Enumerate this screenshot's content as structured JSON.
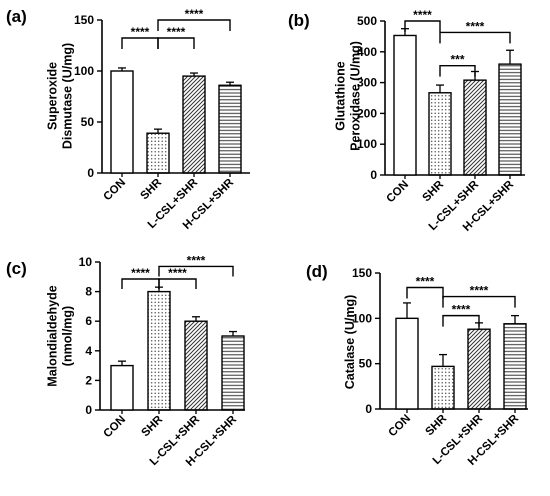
{
  "chart_data": [
    {
      "type": "bar",
      "panel": "(a)",
      "ylabel_lines": [
        "Superoxide",
        "Dismutase (U/mg)"
      ],
      "categories": [
        "CON",
        "SHR",
        "L-CSL+SHR",
        "H-CSL+SHR"
      ],
      "values": [
        100,
        39,
        95,
        86
      ],
      "errors": [
        3,
        4,
        3,
        3
      ],
      "ylim": [
        0,
        150
      ],
      "yticks": [
        "0",
        "50",
        "100",
        "150"
      ],
      "significance": [
        {
          "from": 0,
          "to": 1,
          "label": "****"
        },
        {
          "from": 1,
          "to": 2,
          "label": "****"
        },
        {
          "from": 1,
          "to": 3,
          "label": "****"
        }
      ]
    },
    {
      "type": "bar",
      "panel": "(b)",
      "ylabel_lines": [
        "Glutathione",
        "Peroxidase (U/mg)"
      ],
      "categories": [
        "CON",
        "SHR",
        "L-CSL+SHR",
        "H-CSL+SHR"
      ],
      "values": [
        453,
        267,
        308,
        360
      ],
      "errors": [
        22,
        25,
        28,
        45
      ],
      "ylim": [
        0,
        500
      ],
      "yticks": [
        "0",
        "100",
        "200",
        "300",
        "400",
        "500"
      ],
      "significance": [
        {
          "from": 0,
          "to": 1,
          "label": "****"
        },
        {
          "from": 1,
          "to": 2,
          "label": "***"
        },
        {
          "from": 1,
          "to": 3,
          "label": "****"
        }
      ]
    },
    {
      "type": "bar",
      "panel": "(c)",
      "ylabel_lines": [
        "Malondialdehyde",
        "(nmol/mg)"
      ],
      "categories": [
        "CON",
        "SHR",
        "L-CSL+SHR",
        "H-CSL+SHR"
      ],
      "values": [
        3.0,
        8.0,
        6.0,
        5.0
      ],
      "errors": [
        0.3,
        0.3,
        0.3,
        0.3
      ],
      "ylim": [
        0,
        10
      ],
      "yticks": [
        "0",
        "2",
        "4",
        "6",
        "8",
        "10"
      ],
      "significance": [
        {
          "from": 0,
          "to": 1,
          "label": "****"
        },
        {
          "from": 1,
          "to": 2,
          "label": "****"
        },
        {
          "from": 1,
          "to": 3,
          "label": "****"
        }
      ]
    },
    {
      "type": "bar",
      "panel": "(d)",
      "ylabel_lines": [
        "Catalase (U/mg)"
      ],
      "categories": [
        "CON",
        "SHR",
        "L-CSL+SHR",
        "H-CSL+SHR"
      ],
      "values": [
        100,
        47,
        88,
        94
      ],
      "errors": [
        17,
        13,
        7,
        9
      ],
      "ylim": [
        0,
        150
      ],
      "yticks": [
        "0",
        "50",
        "100",
        "150"
      ],
      "significance": [
        {
          "from": 0,
          "to": 1,
          "label": "****"
        },
        {
          "from": 1,
          "to": 2,
          "label": "****"
        },
        {
          "from": 1,
          "to": 3,
          "label": "****"
        }
      ]
    }
  ],
  "bar_styles": [
    "blank",
    "dots",
    "diagonal",
    "horizontal"
  ]
}
